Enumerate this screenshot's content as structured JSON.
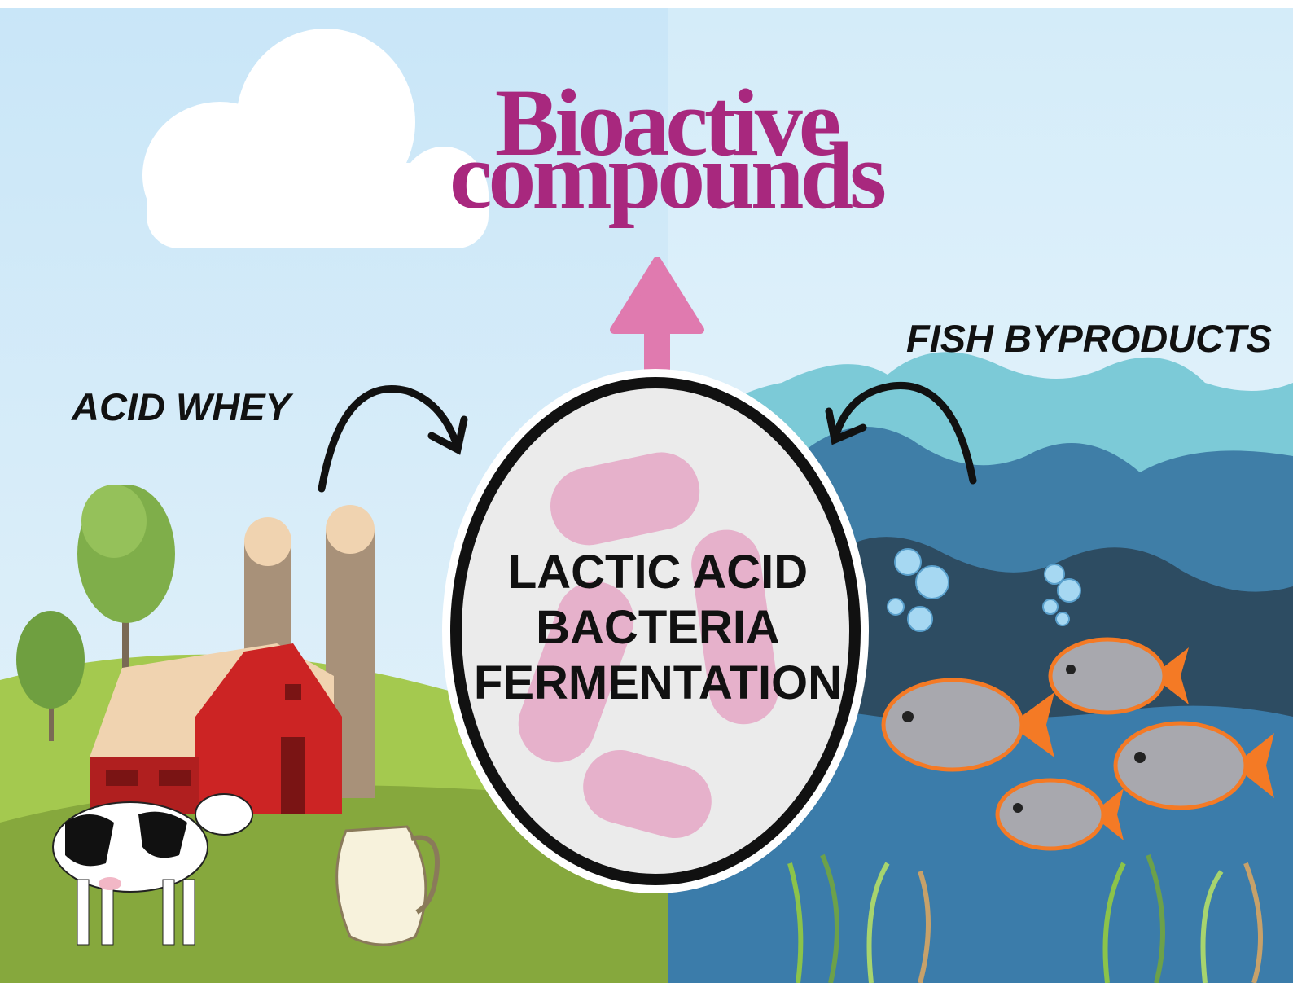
{
  "title": {
    "line1": "Bioactive",
    "line2": "compounds"
  },
  "sources": [
    {
      "label": "ACID WHEY"
    },
    {
      "label": "FISH BYPRODUCTS"
    }
  ],
  "process": {
    "lines": [
      "LACTIC ACID",
      "BACTERIA",
      "FERMENTATION"
    ]
  }
}
